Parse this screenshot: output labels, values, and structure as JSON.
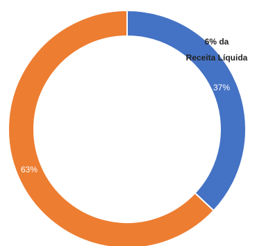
{
  "chart_data": {
    "type": "pie",
    "values": [
      37,
      63
    ],
    "slice_labels": [
      "37%",
      "63%"
    ],
    "colors": [
      "#4472C4",
      "#ED7D31"
    ],
    "annotation": {
      "line1": "6% da",
      "line2": "Receita Líquida"
    }
  }
}
